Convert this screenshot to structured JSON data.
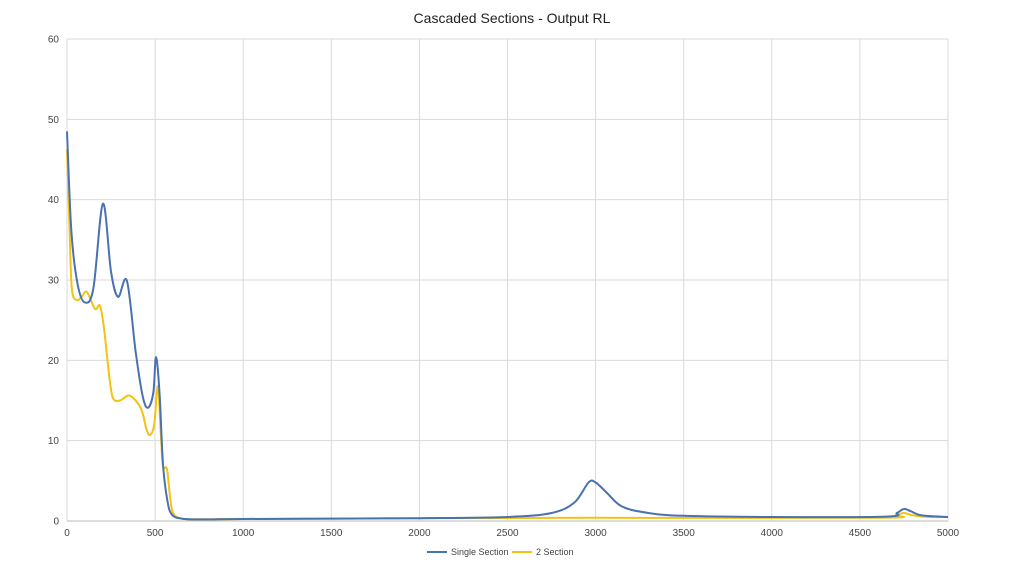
{
  "chart_data": {
    "type": "line",
    "title": "Cascaded Sections - Output RL",
    "xlabel": "",
    "ylabel": "",
    "xlim": [
      0,
      5000
    ],
    "ylim": [
      0,
      60
    ],
    "xticks": [
      0,
      500,
      1000,
      1500,
      2000,
      2500,
      3000,
      3500,
      4000,
      4500,
      5000
    ],
    "yticks": [
      0,
      10,
      20,
      30,
      40,
      50,
      60
    ],
    "grid": true,
    "legend_position": "bottom",
    "series": [
      {
        "name": "Single Section",
        "color": "#4a72b0",
        "points": [
          [
            0,
            48.5
          ],
          [
            25,
            36
          ],
          [
            60,
            29.5
          ],
          [
            102,
            27.2
          ],
          [
            150,
            29
          ],
          [
            204,
            39.5
          ],
          [
            250,
            31
          ],
          [
            290,
            27.9
          ],
          [
            340,
            29.9
          ],
          [
            390,
            21
          ],
          [
            430,
            15.5
          ],
          [
            460,
            14.1
          ],
          [
            490,
            16
          ],
          [
            505,
            20.4
          ],
          [
            525,
            16
          ],
          [
            545,
            7
          ],
          [
            570,
            2.5
          ],
          [
            595,
            0.8
          ],
          [
            650,
            0.3
          ],
          [
            750,
            0.2
          ],
          [
            1000,
            0.25
          ],
          [
            1500,
            0.3
          ],
          [
            2000,
            0.35
          ],
          [
            2500,
            0.5
          ],
          [
            2750,
            1.0
          ],
          [
            2880,
            2.3
          ],
          [
            2960,
            4.8
          ],
          [
            3000,
            4.8
          ],
          [
            3060,
            3.6
          ],
          [
            3150,
            1.8
          ],
          [
            3300,
            1.0
          ],
          [
            3500,
            0.65
          ],
          [
            4000,
            0.5
          ],
          [
            4650,
            0.55
          ],
          [
            4710,
            1.0
          ],
          [
            4750,
            1.5
          ],
          [
            4790,
            1.2
          ],
          [
            4850,
            0.7
          ],
          [
            5000,
            0.5
          ]
        ]
      },
      {
        "name": "2 Section",
        "color": "#f2c314",
        "points": [
          [
            0,
            46.3
          ],
          [
            15,
            36
          ],
          [
            28,
            28.8
          ],
          [
            57,
            27.5
          ],
          [
            85,
            28
          ],
          [
            113,
            28.5
          ],
          [
            159,
            26.4
          ],
          [
            187,
            26.8
          ],
          [
            210,
            24
          ],
          [
            240,
            18
          ],
          [
            261,
            15.3
          ],
          [
            300,
            15
          ],
          [
            357,
            15.6
          ],
          [
            420,
            14
          ],
          [
            450,
            11.5
          ],
          [
            471,
            10.7
          ],
          [
            495,
            12
          ],
          [
            516,
            16.8
          ],
          [
            532,
            11
          ],
          [
            545,
            6.8
          ],
          [
            567,
            6.5
          ],
          [
            585,
            3
          ],
          [
            602,
            1
          ],
          [
            650,
            0.3
          ],
          [
            750,
            0.2
          ],
          [
            1000,
            0.25
          ],
          [
            1500,
            0.3
          ],
          [
            2000,
            0.35
          ],
          [
            3000,
            0.4
          ],
          [
            4600,
            0.4
          ],
          [
            4700,
            0.7
          ],
          [
            4750,
            1.0
          ],
          [
            4800,
            0.7
          ],
          [
            4900,
            0.5
          ],
          [
            5000,
            0.5
          ]
        ]
      }
    ]
  }
}
